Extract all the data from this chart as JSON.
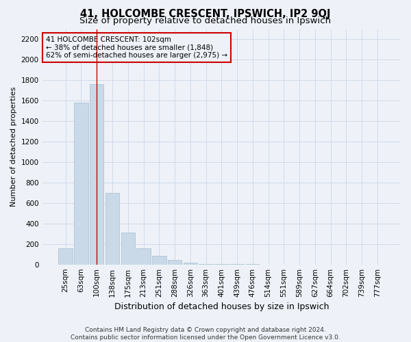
{
  "title": "41, HOLCOMBE CRESCENT, IPSWICH, IP2 9QJ",
  "subtitle": "Size of property relative to detached houses in Ipswich",
  "xlabel": "Distribution of detached houses by size in Ipswich",
  "ylabel": "Number of detached properties",
  "footnote1": "Contains HM Land Registry data © Crown copyright and database right 2024.",
  "footnote2": "Contains public sector information licensed under the Open Government Licence v3.0.",
  "annotation_line1": "41 HOLCOMBE CRESCENT: 102sqm",
  "annotation_line2": "← 38% of detached houses are smaller (1,848)",
  "annotation_line3": "62% of semi-detached houses are larger (2,975) →",
  "bar_color": "#c9d9e8",
  "bar_edgecolor": "#a8bfd0",
  "vline_color": "#cc0000",
  "annotation_box_edgecolor": "#cc0000",
  "background_color": "#eef2f8",
  "categories": [
    "25sqm",
    "63sqm",
    "100sqm",
    "138sqm",
    "175sqm",
    "213sqm",
    "251sqm",
    "288sqm",
    "326sqm",
    "363sqm",
    "401sqm",
    "439sqm",
    "476sqm",
    "514sqm",
    "551sqm",
    "589sqm",
    "627sqm",
    "664sqm",
    "702sqm",
    "739sqm",
    "777sqm"
  ],
  "values": [
    155,
    1580,
    1760,
    700,
    310,
    155,
    85,
    45,
    15,
    5,
    5,
    3,
    2,
    0,
    0,
    0,
    0,
    0,
    0,
    0,
    0
  ],
  "ylim": [
    0,
    2300
  ],
  "yticks": [
    0,
    200,
    400,
    600,
    800,
    1000,
    1200,
    1400,
    1600,
    1800,
    2000,
    2200
  ],
  "vline_bar_index": 2,
  "grid_color": "#d0daea",
  "title_fontsize": 10.5,
  "subtitle_fontsize": 9.5,
  "ylabel_fontsize": 8,
  "xlabel_fontsize": 9,
  "tick_fontsize": 7.5,
  "annotation_fontsize": 7.5,
  "footnote_fontsize": 6.5
}
